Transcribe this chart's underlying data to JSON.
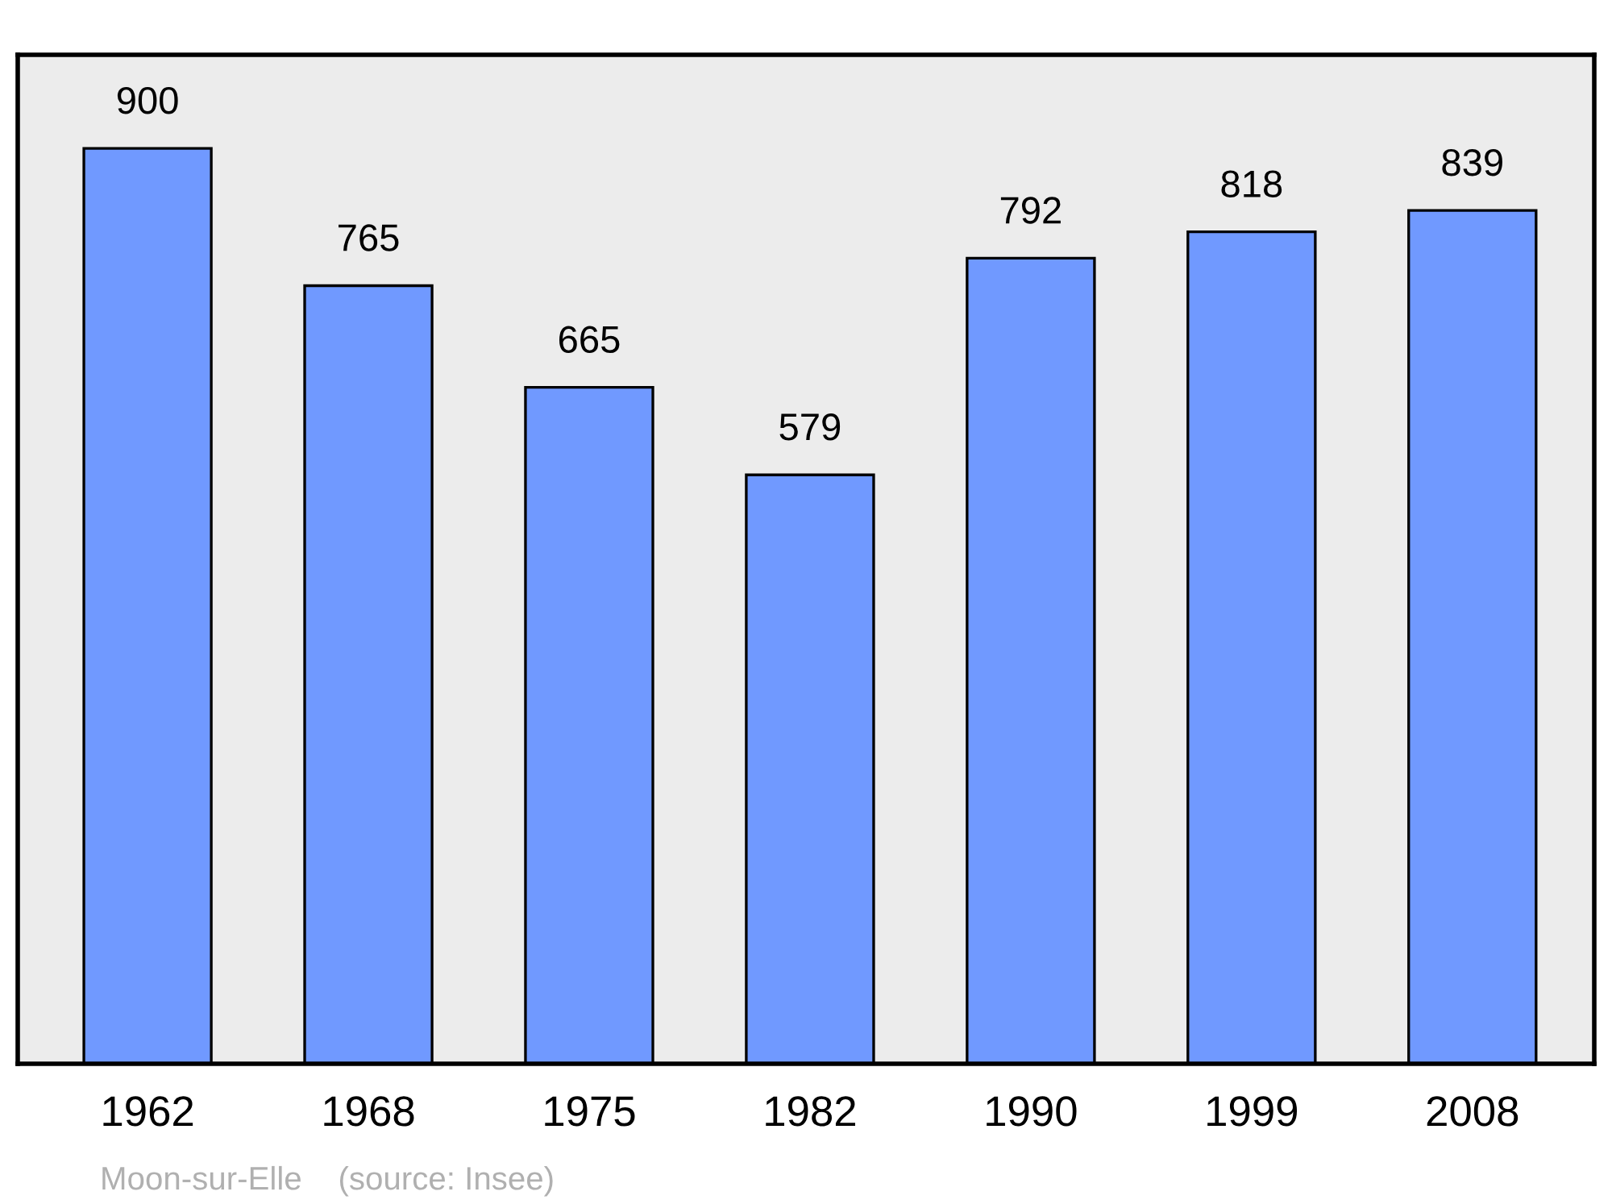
{
  "chart_data": {
    "type": "bar",
    "categories": [
      "1962",
      "1968",
      "1975",
      "1982",
      "1990",
      "1999",
      "2008"
    ],
    "values": [
      900,
      765,
      665,
      579,
      792,
      818,
      839
    ],
    "color": "#7099ff",
    "ylim": [
      0,
      992
    ],
    "data_labels": true,
    "grid": false,
    "legend": false,
    "tick_labels": "x",
    "annotations": [
      "Moon-sur-Elle    (source: Insee)"
    ]
  }
}
